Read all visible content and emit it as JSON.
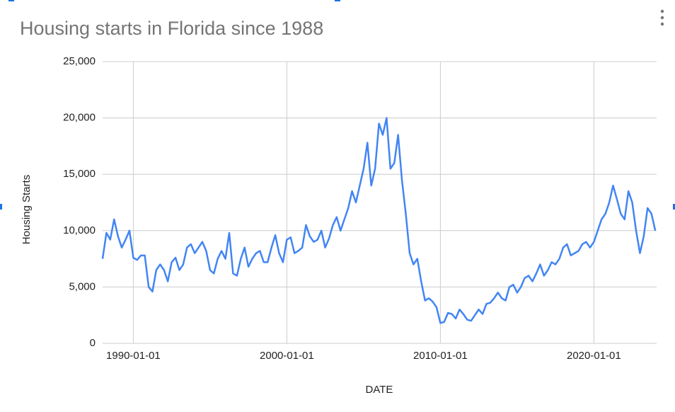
{
  "chart_data": {
    "type": "line",
    "title": "Housing starts in Florida since 1988",
    "x_label": "DATE",
    "y_label": "Housing Starts",
    "color": "#4285f4",
    "grid": true,
    "x": [
      "1988-01-01",
      "1988-04-01",
      "1988-07-01",
      "1988-10-01",
      "1989-01-01",
      "1989-04-01",
      "1989-07-01",
      "1989-10-01",
      "1990-01-01",
      "1990-04-01",
      "1990-07-01",
      "1990-10-01",
      "1991-01-01",
      "1991-04-01",
      "1991-07-01",
      "1991-10-01",
      "1992-01-01",
      "1992-04-01",
      "1992-07-01",
      "1992-10-01",
      "1993-01-01",
      "1993-04-01",
      "1993-07-01",
      "1993-10-01",
      "1994-01-01",
      "1994-04-01",
      "1994-07-01",
      "1994-10-01",
      "1995-01-01",
      "1995-04-01",
      "1995-07-01",
      "1995-10-01",
      "1996-01-01",
      "1996-04-01",
      "1996-07-01",
      "1996-10-01",
      "1997-01-01",
      "1997-04-01",
      "1997-07-01",
      "1997-10-01",
      "1998-01-01",
      "1998-04-01",
      "1998-07-01",
      "1998-10-01",
      "1999-01-01",
      "1999-04-01",
      "1999-07-01",
      "1999-10-01",
      "2000-01-01",
      "2000-04-01",
      "2000-07-01",
      "2000-10-01",
      "2001-01-01",
      "2001-04-01",
      "2001-07-01",
      "2001-10-01",
      "2002-01-01",
      "2002-04-01",
      "2002-07-01",
      "2002-10-01",
      "2003-01-01",
      "2003-04-01",
      "2003-07-01",
      "2003-10-01",
      "2004-01-01",
      "2004-04-01",
      "2004-07-01",
      "2004-10-01",
      "2005-01-01",
      "2005-04-01",
      "2005-07-01",
      "2005-10-01",
      "2006-01-01",
      "2006-04-01",
      "2006-07-01",
      "2006-10-01",
      "2007-01-01",
      "2007-04-01",
      "2007-07-01",
      "2007-10-01",
      "2008-01-01",
      "2008-04-01",
      "2008-07-01",
      "2008-10-01",
      "2009-01-01",
      "2009-04-01",
      "2009-07-01",
      "2009-10-01",
      "2010-01-01",
      "2010-04-01",
      "2010-07-01",
      "2010-10-01",
      "2011-01-01",
      "2011-04-01",
      "2011-07-01",
      "2011-10-01",
      "2012-01-01",
      "2012-04-01",
      "2012-07-01",
      "2012-10-01",
      "2013-01-01",
      "2013-04-01",
      "2013-07-01",
      "2013-10-01",
      "2014-01-01",
      "2014-04-01",
      "2014-07-01",
      "2014-10-01",
      "2015-01-01",
      "2015-04-01",
      "2015-07-01",
      "2015-10-01",
      "2016-01-01",
      "2016-04-01",
      "2016-07-01",
      "2016-10-01",
      "2017-01-01",
      "2017-04-01",
      "2017-07-01",
      "2017-10-01",
      "2018-01-01",
      "2018-04-01",
      "2018-07-01",
      "2018-10-01",
      "2019-01-01",
      "2019-04-01",
      "2019-07-01",
      "2019-10-01",
      "2020-01-01",
      "2020-04-01",
      "2020-07-01",
      "2020-10-01",
      "2021-01-01",
      "2021-04-01",
      "2021-07-01",
      "2021-10-01",
      "2022-01-01",
      "2022-04-01",
      "2022-07-01",
      "2022-10-01",
      "2023-01-01",
      "2023-04-01",
      "2023-07-01",
      "2023-10-01",
      "2024-01-01"
    ],
    "values": [
      7500,
      9800,
      9200,
      11000,
      9500,
      8500,
      9200,
      10000,
      7600,
      7400,
      7800,
      7800,
      5000,
      4600,
      6500,
      7000,
      6500,
      5500,
      7200,
      7600,
      6500,
      7000,
      8500,
      8800,
      8000,
      8500,
      9000,
      8200,
      6500,
      6200,
      7500,
      8200,
      7500,
      9800,
      6200,
      6000,
      7500,
      8500,
      6800,
      7500,
      8000,
      8200,
      7200,
      7200,
      8500,
      9600,
      8000,
      7200,
      9200,
      9400,
      8000,
      8200,
      8500,
      10500,
      9500,
      9000,
      9200,
      10000,
      8500,
      9300,
      10500,
      11200,
      10000,
      11000,
      12000,
      13500,
      12500,
      14000,
      15500,
      17800,
      14000,
      15500,
      19500,
      18500,
      20000,
      15500,
      16000,
      18500,
      14500,
      11500,
      8000,
      7000,
      7500,
      5500,
      3800,
      4000,
      3700,
      3200,
      1800,
      1900,
      2700,
      2600,
      2200,
      3000,
      2600,
      2100,
      2000,
      2500,
      3000,
      2600,
      3500,
      3600,
      4000,
      4500,
      4000,
      3800,
      5000,
      5200,
      4500,
      5000,
      5800,
      6000,
      5500,
      6200,
      7000,
      6000,
      6500,
      7200,
      7000,
      7500,
      8500,
      8800,
      7800,
      8000,
      8200,
      8800,
      9000,
      8500,
      9000,
      10000,
      11000,
      11500,
      12500,
      14000,
      12800,
      11500,
      11000,
      13500,
      12500,
      10000,
      8000,
      9500,
      12000,
      11500,
      10000
    ],
    "xlim": [
      "1988-01-01",
      "2024-02-01"
    ],
    "xticks": [
      "1990-01-01",
      "2000-01-01",
      "2010-01-01",
      "2020-01-01"
    ],
    "ylim": [
      0,
      25000
    ],
    "yticks": [
      0,
      {
        "value": 5000,
        "label": "5,000"
      },
      {
        "value": 10000,
        "label": "10,000"
      },
      {
        "value": 15000,
        "label": "15,000"
      },
      {
        "value": 20000,
        "label": "20,000"
      },
      {
        "value": 25000,
        "label": "25,000"
      }
    ]
  }
}
